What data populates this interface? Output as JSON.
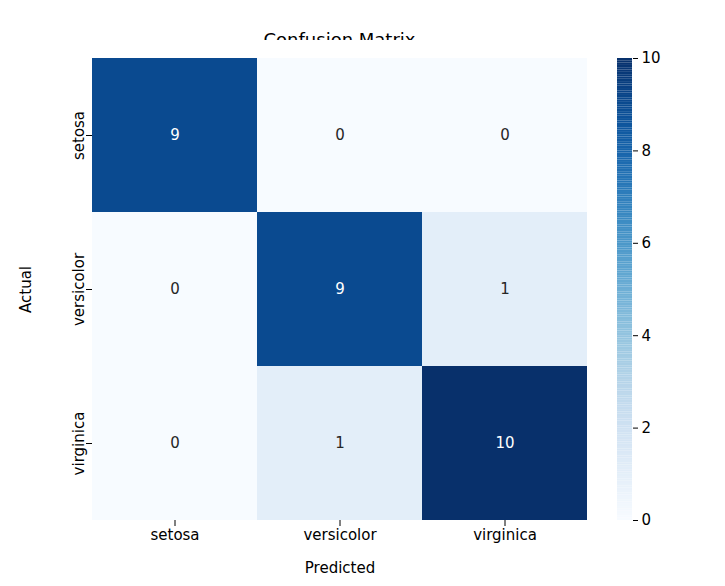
{
  "chart_data": {
    "type": "heatmap",
    "title": "Confusion Matrix",
    "x_label": "Predicted",
    "y_label": "Actual",
    "x_categories": [
      "setosa",
      "versicolor",
      "virginica"
    ],
    "y_categories": [
      "setosa",
      "versicolor",
      "virginica"
    ],
    "cells": [
      [
        9,
        0,
        0
      ],
      [
        0,
        9,
        1
      ],
      [
        0,
        1,
        10
      ]
    ],
    "data_labels": true,
    "colorbar_lim": [
      0,
      10
    ],
    "colorbar_ticks": [
      0,
      2,
      4,
      6,
      8,
      10
    ]
  }
}
